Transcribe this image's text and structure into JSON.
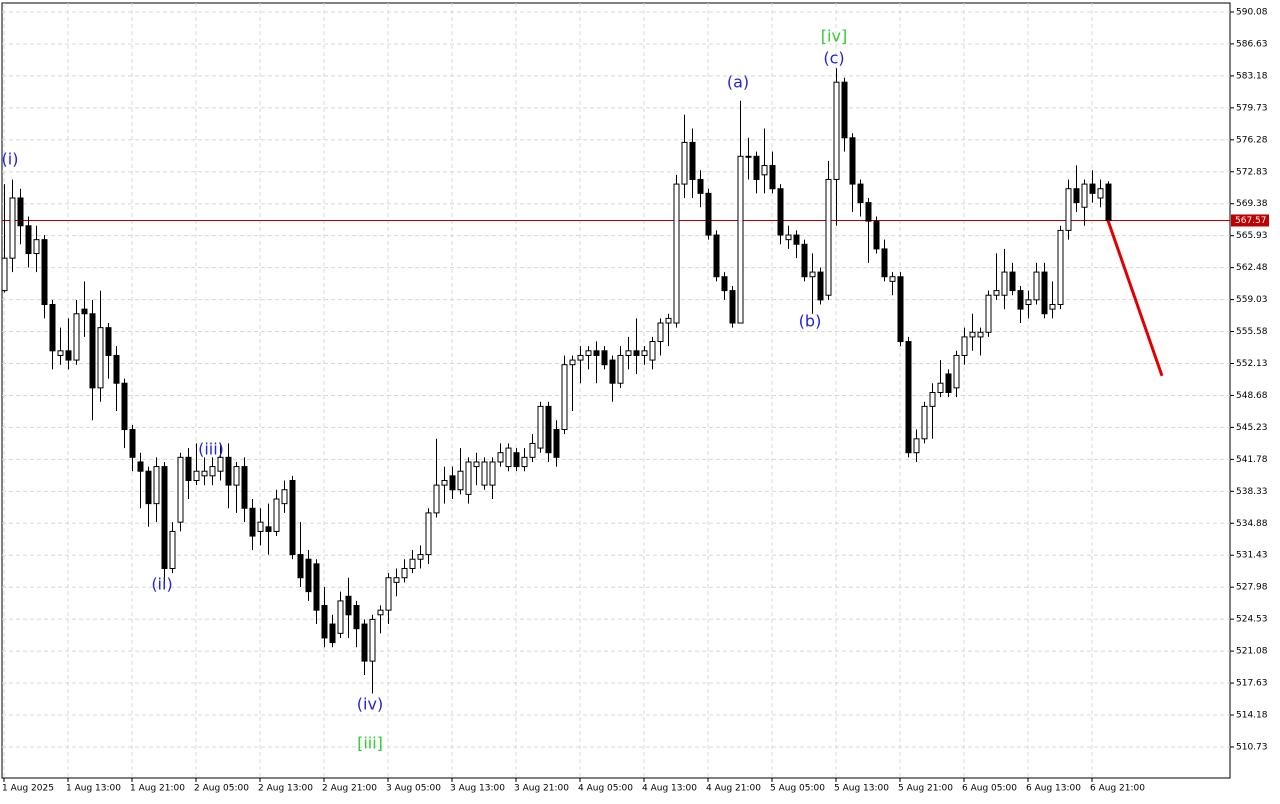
{
  "chart_data": {
    "type": "candlestick",
    "categories": [
      "1 Aug 2025",
      null,
      null,
      null,
      null,
      null,
      null,
      null,
      "1 Aug 13:00",
      null,
      null,
      null,
      null,
      null,
      null,
      null,
      "1 Aug 21:00",
      null,
      null,
      null,
      null,
      null,
      null,
      null,
      "2 Aug 05:00",
      null,
      null,
      null,
      null,
      null,
      null,
      null,
      "2 Aug 13:00",
      null,
      null,
      null,
      null,
      null,
      null,
      null,
      "2 Aug 21:00",
      null,
      null,
      null,
      null,
      null,
      null,
      null,
      "3 Aug 05:00",
      null,
      null,
      null,
      null,
      null,
      null,
      null,
      "3 Aug 13:00",
      null,
      null,
      null,
      null,
      null,
      null,
      null,
      "3 Aug 21:00",
      null,
      null,
      null,
      null,
      null,
      null,
      null,
      "4 Aug 05:00",
      null,
      null,
      null,
      null,
      null,
      null,
      null,
      "4 Aug 13:00",
      null,
      null,
      null,
      null,
      null,
      null,
      null,
      "4 Aug 21:00",
      null,
      null,
      null,
      null,
      null,
      null,
      null,
      "5 Aug 05:00",
      null,
      null,
      null,
      null,
      null,
      null,
      null,
      "5 Aug 13:00",
      null,
      null,
      null,
      null,
      null,
      null,
      null,
      "5 Aug 21:00",
      null,
      null,
      null,
      null,
      null,
      null,
      null,
      "6 Aug 05:00",
      null,
      null,
      null,
      null,
      null,
      null,
      null,
      "6 Aug 13:00",
      null,
      null,
      null,
      null,
      null,
      null,
      null,
      "6 Aug 21:00",
      null,
      null
    ],
    "open": [
      560,
      563.5,
      570,
      567,
      564,
      565.5,
      558.5,
      553,
      553.5,
      552.5,
      558,
      557.5,
      549.5,
      556,
      553,
      550,
      545,
      541.5,
      540.5,
      537,
      541,
      530,
      535,
      542,
      539.5,
      540,
      540,
      540.5,
      542,
      539,
      541,
      536.5,
      534,
      534.5,
      534,
      537,
      539.5,
      531.5,
      531,
      530.5,
      526,
      524,
      523,
      527,
      526,
      524,
      520,
      525,
      525.5,
      528.5,
      529,
      530,
      531,
      531.5,
      536,
      539,
      540,
      538.5,
      538,
      541,
      539,
      539,
      541.5,
      541,
      542.5,
      541,
      542,
      543,
      547.5,
      545,
      545,
      552,
      552.5,
      553,
      553.5,
      553.5,
      552.5,
      550,
      553,
      553.5,
      553,
      552.5,
      554.5,
      556.5,
      556.5,
      571.5,
      576,
      572,
      570.5,
      566,
      561.5,
      560,
      556.5,
      574.5,
      574.5,
      572.5,
      573.5,
      571,
      565.5,
      566,
      565,
      561.5,
      562,
      559.5,
      572,
      582.5,
      576.5,
      571.5,
      569.5,
      567.5,
      564.5,
      561,
      561.5,
      554.5,
      542.5,
      544,
      547.5,
      549,
      551,
      549.5,
      553,
      555,
      555,
      555.5,
      559.5,
      559.5,
      562,
      560,
      558.5,
      559,
      562,
      558,
      558.5,
      566.5,
      571,
      569,
      571.5,
      570,
      571.5
    ],
    "high": [
      571.5,
      572,
      571,
      568,
      567,
      566,
      559,
      556,
      557,
      559,
      561,
      559,
      560,
      556.5,
      554,
      550.5,
      545.5,
      542.5,
      541,
      542,
      541.5,
      535,
      542.5,
      543,
      543.5,
      542,
      542,
      543.5,
      543.5,
      541.5,
      542,
      537.5,
      536.5,
      537,
      538.5,
      539.5,
      540,
      535,
      532,
      531,
      528,
      525,
      527.5,
      529,
      526.5,
      524.5,
      525,
      526,
      529.5,
      530,
      531,
      532,
      532.5,
      536.5,
      544,
      541,
      541,
      543,
      542,
      542.5,
      542,
      542,
      543.5,
      543.5,
      543,
      543,
      544.5,
      548,
      548,
      546,
      553,
      553,
      554,
      554,
      554.5,
      554,
      553,
      554,
      555,
      557,
      554,
      555,
      557,
      557.5,
      572.5,
      579,
      577.5,
      573,
      571,
      566.5,
      562,
      560.5,
      580.5,
      576.5,
      575,
      577.5,
      575,
      571.5,
      567,
      566.5,
      565.5,
      564,
      562.5,
      574,
      584,
      583,
      577,
      572,
      570,
      568,
      565.5,
      562,
      562,
      555,
      545,
      548,
      550,
      552.5,
      551.5,
      553.5,
      556,
      557.5,
      556,
      560,
      564,
      564.5,
      563,
      560.5,
      560,
      563,
      563,
      561,
      567,
      572,
      573.5,
      572,
      573,
      572,
      571.8
    ],
    "low": [
      559.8,
      562,
      565,
      562.5,
      562,
      557,
      551.5,
      552,
      551.5,
      552,
      555,
      546,
      548,
      550.5,
      547,
      543,
      540.5,
      536.5,
      534.5,
      535,
      528.5,
      529.5,
      534,
      537.5,
      539,
      539,
      539,
      539.5,
      536.5,
      536,
      535,
      532,
      532.5,
      531.5,
      533.5,
      536,
      531,
      528,
      526.5,
      524,
      521.5,
      521.5,
      522.5,
      522.5,
      521.5,
      518.5,
      516.5,
      523,
      524,
      527,
      528.5,
      529.5,
      530,
      530.5,
      535.5,
      537,
      537.5,
      538,
      537,
      539,
      538.5,
      537.5,
      541,
      540.5,
      540.5,
      540.5,
      541.5,
      542.5,
      541.5,
      541,
      544.5,
      547,
      550,
      551.5,
      550,
      551.5,
      548,
      549.5,
      551.5,
      551,
      552,
      551.5,
      553,
      554,
      556,
      570,
      570,
      569,
      565.5,
      561,
      559,
      556,
      556.5,
      572,
      570.5,
      570.5,
      570.5,
      565,
      564.5,
      563.5,
      561,
      557.5,
      558.5,
      559,
      567,
      575,
      568.5,
      568,
      563,
      564,
      561,
      559.5,
      554,
      542,
      541.5,
      543.5,
      544,
      548.5,
      548.5,
      548.5,
      552,
      553.5,
      553,
      555,
      559,
      558,
      559.5,
      556.5,
      557,
      558.5,
      557,
      557,
      558,
      565.5,
      568.5,
      567,
      569.5,
      569,
      567.4
    ],
    "close": [
      563.5,
      570,
      567,
      564,
      565.5,
      558.5,
      553.5,
      553.5,
      552.5,
      557.5,
      557.5,
      549.5,
      556,
      553,
      550,
      545,
      542,
      540.5,
      537,
      541,
      530,
      534,
      542,
      539.5,
      540.5,
      540.5,
      541,
      542,
      539,
      541,
      536.5,
      533.5,
      535,
      534,
      537.5,
      538.5,
      531.5,
      529,
      527.5,
      525.5,
      522.5,
      522,
      526.5,
      525,
      523.5,
      520,
      524.5,
      525.5,
      529,
      529,
      530,
      531,
      531.5,
      536,
      539,
      539.5,
      538.5,
      540.5,
      541.5,
      541.5,
      541.5,
      541.5,
      542.5,
      543,
      541,
      542,
      543.5,
      547.5,
      542.5,
      542,
      552,
      552.5,
      553,
      553.5,
      553,
      552,
      550,
      553,
      553.5,
      553,
      553.5,
      554.5,
      556.5,
      557,
      571.5,
      576,
      572,
      570.5,
      566,
      561.5,
      560,
      556.5,
      574.5,
      574.5,
      572,
      573.5,
      571,
      566,
      566,
      565,
      561.5,
      562,
      559,
      572,
      582.5,
      576.5,
      571.5,
      569.5,
      567.5,
      564.5,
      561.5,
      561.5,
      554.5,
      542.5,
      544,
      547.5,
      549,
      550,
      549,
      553,
      555,
      555.5,
      555.5,
      559.5,
      560,
      562,
      560,
      558,
      559,
      562,
      557.5,
      558.5,
      566.5,
      571,
      569.5,
      571.5,
      570.5,
      571,
      567.57
    ],
    "up_color": "#ffffff",
    "down_color": "#000000",
    "ylim": [
      507.38,
      591.05
    ],
    "yticks": [
      590.08,
      586.63,
      583.18,
      579.73,
      576.28,
      572.83,
      569.38,
      565.93,
      562.48,
      559.03,
      555.58,
      552.13,
      548.68,
      545.23,
      541.78,
      538.33,
      534.88,
      531.43,
      527.98,
      524.53,
      521.08,
      517.63,
      514.18,
      510.73
    ],
    "grid": true,
    "current_price": {
      "value": 567.57,
      "color": "#c00000"
    },
    "forecast": {
      "values": [
        567.57,
        550.8
      ],
      "color": "#e00000"
    },
    "annotations": [
      {
        "text": "(i)",
        "color": "#2424d6"
      },
      {
        "text": "(ii)",
        "color": "#2424d6"
      },
      {
        "text": "(iii)",
        "color": "#2424d6"
      },
      {
        "text": "(iv)",
        "color": "#2424d6"
      },
      {
        "text": "[iii]",
        "color": "#33cc33"
      },
      {
        "text": "(a)",
        "color": "#2424d6"
      },
      {
        "text": "(b)",
        "color": "#2424d6"
      },
      {
        "text": "[iv]",
        "color": "#33cc33"
      },
      {
        "text": "(c)",
        "color": "#2424d6"
      }
    ]
  }
}
